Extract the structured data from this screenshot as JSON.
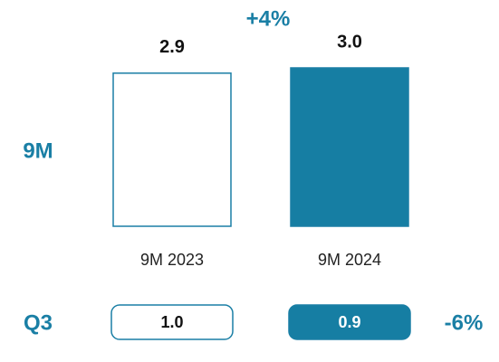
{
  "chart_data": [
    {
      "type": "bar",
      "label": "9M",
      "categories": [
        "9M 2023",
        "9M 2024"
      ],
      "values": [
        2.9,
        3.0
      ],
      "value_labels": [
        "2.9",
        "3.0"
      ],
      "annotation": "+4%",
      "colors": [
        "#ffffff",
        "#167ea3"
      ]
    },
    {
      "type": "tile",
      "label": "Q3",
      "values": [
        1.0,
        0.9
      ],
      "value_labels": [
        "1.0",
        "0.9"
      ],
      "annotation": "-6%",
      "colors": [
        "#ffffff",
        "#167ea3"
      ]
    }
  ]
}
